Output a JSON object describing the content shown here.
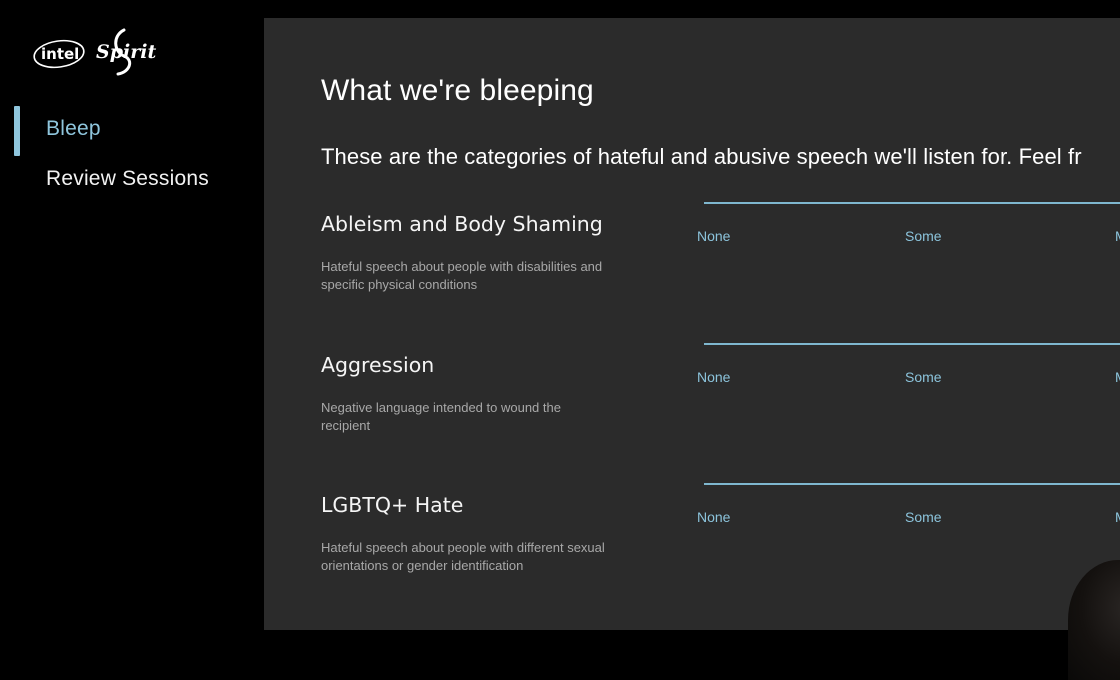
{
  "sidebar": {
    "logos": {
      "intel": "intel",
      "spirit": "Spirit"
    },
    "nav": [
      {
        "label": "Bleep",
        "active": true
      },
      {
        "label": "Review Sessions",
        "active": false
      }
    ]
  },
  "main": {
    "title": "What we're bleeping",
    "intro": "These are the categories of hateful and abusive speech we'll listen for. Feel fr",
    "level_labels": [
      "None",
      "Some",
      "M"
    ],
    "categories": [
      {
        "name": "Ableism and Body Shaming",
        "description": "Hateful speech about people with disabilities and specific physical conditions"
      },
      {
        "name": "Aggression",
        "description": "Negative language intended to wound the recipient"
      },
      {
        "name": "LGBTQ+ Hate",
        "description": "Hateful speech about people with different sexual orientations or gender identification"
      }
    ]
  },
  "colors": {
    "accent": "#8fc6dd",
    "panel": "#2b2b2b",
    "background": "#000000"
  }
}
